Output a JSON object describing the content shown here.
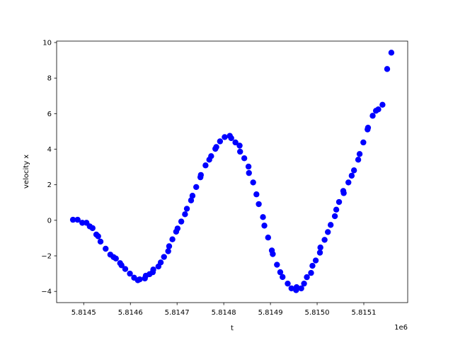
{
  "chart_data": {
    "type": "scatter",
    "title": "",
    "xlabel": "t",
    "ylabel": "velocity x",
    "x_offset_label": "1e6",
    "xlim": [
      5814442,
      5815194
    ],
    "ylim": [
      -4.63,
      10.08
    ],
    "x_ticks": [
      5814500,
      5814600,
      5814700,
      5814800,
      5814900,
      5815000,
      5815100
    ],
    "x_tick_labels": [
      "5.8145",
      "5.8146",
      "5.8147",
      "5.8148",
      "5.8149",
      "5.8150",
      "5.8151"
    ],
    "y_ticks": [
      -4,
      -2,
      0,
      2,
      4,
      6,
      8,
      10
    ],
    "y_tick_labels": [
      "−4",
      "−2",
      "0",
      "2",
      "4",
      "6",
      "8",
      "10"
    ],
    "grid": false,
    "marker_color": "#0000ff",
    "points": [
      [
        5814477,
        0.03
      ],
      [
        5814487,
        0.03
      ],
      [
        5814497,
        -0.14
      ],
      [
        5814506,
        -0.14
      ],
      [
        5814513,
        -0.34
      ],
      [
        5814519,
        -0.44
      ],
      [
        5814527,
        -0.8
      ],
      [
        5814531,
        -0.9
      ],
      [
        5814536,
        -1.2
      ],
      [
        5814547,
        -1.6
      ],
      [
        5814557,
        -1.93
      ],
      [
        5814564,
        -2.07
      ],
      [
        5814569,
        -2.15
      ],
      [
        5814578,
        -2.41
      ],
      [
        5814581,
        -2.53
      ],
      [
        5814589,
        -2.74
      ],
      [
        5814599,
        -3.0
      ],
      [
        5814608,
        -3.23
      ],
      [
        5814616,
        -3.37
      ],
      [
        5814620,
        -3.32
      ],
      [
        5814631,
        -3.27
      ],
      [
        5814633,
        -3.12
      ],
      [
        5814641,
        -3.03
      ],
      [
        5814648,
        -2.92
      ],
      [
        5814649,
        -2.77
      ],
      [
        5814660,
        -2.6
      ],
      [
        5814665,
        -2.37
      ],
      [
        5814672,
        -2.06
      ],
      [
        5814681,
        -1.74
      ],
      [
        5814683,
        -1.46
      ],
      [
        5814690,
        -1.07
      ],
      [
        5814698,
        -0.64
      ],
      [
        5814701,
        -0.46
      ],
      [
        5814709,
        -0.07
      ],
      [
        5814717,
        0.34
      ],
      [
        5814721,
        0.65
      ],
      [
        5814730,
        1.12
      ],
      [
        5814733,
        1.38
      ],
      [
        5814741,
        1.87
      ],
      [
        5814750,
        2.42
      ],
      [
        5814751,
        2.55
      ],
      [
        5814761,
        3.09
      ],
      [
        5814769,
        3.41
      ],
      [
        5814773,
        3.61
      ],
      [
        5814782,
        4.02
      ],
      [
        5814784,
        4.12
      ],
      [
        5814792,
        4.44
      ],
      [
        5814802,
        4.68
      ],
      [
        5814813,
        4.75
      ],
      [
        5814816,
        4.62
      ],
      [
        5814825,
        4.38
      ],
      [
        5814834,
        4.2
      ],
      [
        5814835,
        3.86
      ],
      [
        5814844,
        3.49
      ],
      [
        5814853,
        3.02
      ],
      [
        5814854,
        2.66
      ],
      [
        5814863,
        2.13
      ],
      [
        5814870,
        1.46
      ],
      [
        5814875,
        0.91
      ],
      [
        5814884,
        0.18
      ],
      [
        5814887,
        -0.3
      ],
      [
        5814895,
        -0.97
      ],
      [
        5814903,
        -1.7
      ],
      [
        5814905,
        -1.9
      ],
      [
        5814914,
        -2.5
      ],
      [
        5814921,
        -2.92
      ],
      [
        5814926,
        -3.19
      ],
      [
        5814937,
        -3.56
      ],
      [
        5814945,
        -3.83
      ],
      [
        5814955,
        -3.93
      ],
      [
        5814956,
        -3.76
      ],
      [
        5814966,
        -3.83
      ],
      [
        5814972,
        -3.56
      ],
      [
        5814978,
        -3.2
      ],
      [
        5814987,
        -2.96
      ],
      [
        5814990,
        -2.56
      ],
      [
        5814997,
        -2.26
      ],
      [
        5815006,
        -1.82
      ],
      [
        5815007,
        -1.53
      ],
      [
        5815016,
        -1.1
      ],
      [
        5815023,
        -0.66
      ],
      [
        5815029,
        -0.26
      ],
      [
        5815038,
        0.23
      ],
      [
        5815041,
        0.6
      ],
      [
        5815047,
        1.03
      ],
      [
        5815056,
        1.65
      ],
      [
        5815057,
        1.53
      ],
      [
        5815067,
        2.13
      ],
      [
        5815074,
        2.51
      ],
      [
        5815079,
        2.81
      ],
      [
        5815088,
        3.41
      ],
      [
        5815091,
        3.73
      ],
      [
        5815099,
        4.38
      ],
      [
        5815108,
        5.11
      ],
      [
        5815109,
        5.21
      ],
      [
        5815119,
        5.88
      ],
      [
        5815126,
        6.16
      ],
      [
        5815131,
        6.24
      ],
      [
        5815140,
        6.5
      ],
      [
        5815150,
        8.51
      ],
      [
        5815159,
        9.43
      ]
    ]
  }
}
